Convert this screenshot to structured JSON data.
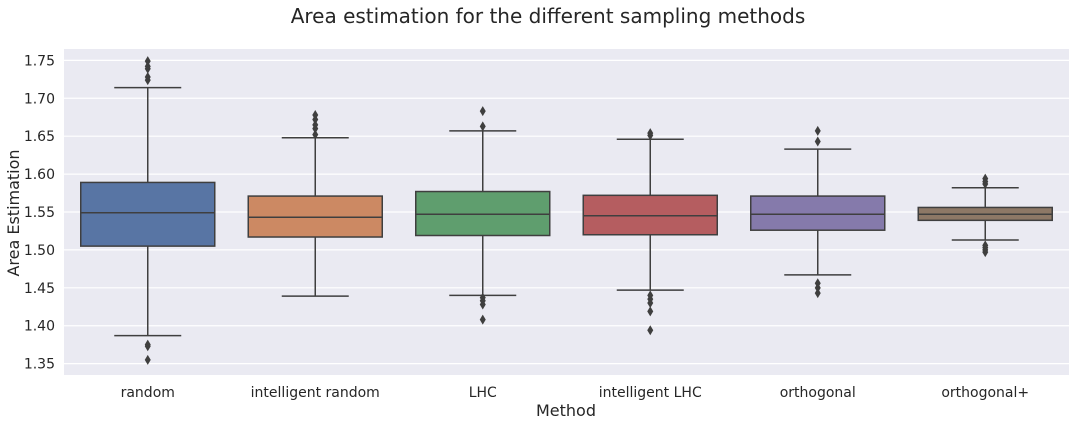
{
  "chart_data": {
    "type": "box",
    "title": "Area estimation for the different sampling methods",
    "xlabel": "Method",
    "ylabel": "Area Estimation",
    "ylim": [
      1.335,
      1.765
    ],
    "yticks": [
      1.35,
      1.4,
      1.45,
      1.5,
      1.55,
      1.6,
      1.65,
      1.7,
      1.75
    ],
    "ytick_labels": [
      "1.35",
      "1.40",
      "1.45",
      "1.50",
      "1.55",
      "1.60",
      "1.65",
      "1.70",
      "1.75"
    ],
    "grid": true,
    "background": "#eaeaf2",
    "categories": [
      "random",
      "intelligent random",
      "LHC",
      "intelligent LHC",
      "orthogonal",
      "orthogonal+"
    ],
    "colors": [
      "#5875a4",
      "#cc8963",
      "#5f9e6e",
      "#b55d60",
      "#857aab",
      "#8d7866"
    ],
    "boxes": [
      {
        "whisker_low": 1.387,
        "q1": 1.505,
        "median": 1.549,
        "q3": 1.589,
        "whisker_high": 1.714,
        "outliers": [
          1.355,
          1.373,
          1.375,
          1.724,
          1.728,
          1.739,
          1.742,
          1.749
        ]
      },
      {
        "whisker_low": 1.439,
        "q1": 1.517,
        "median": 1.543,
        "q3": 1.571,
        "whisker_high": 1.648,
        "outliers": [
          1.652,
          1.66,
          1.665,
          1.672,
          1.678
        ]
      },
      {
        "whisker_low": 1.44,
        "q1": 1.519,
        "median": 1.547,
        "q3": 1.577,
        "whisker_high": 1.657,
        "outliers": [
          1.408,
          1.428,
          1.433,
          1.437,
          1.663,
          1.683
        ]
      },
      {
        "whisker_low": 1.447,
        "q1": 1.52,
        "median": 1.545,
        "q3": 1.572,
        "whisker_high": 1.646,
        "outliers": [
          1.394,
          1.419,
          1.43,
          1.435,
          1.44,
          1.651,
          1.654
        ]
      },
      {
        "whisker_low": 1.467,
        "q1": 1.526,
        "median": 1.547,
        "q3": 1.571,
        "whisker_high": 1.633,
        "outliers": [
          1.443,
          1.45,
          1.456,
          1.643,
          1.657
        ]
      },
      {
        "whisker_low": 1.513,
        "q1": 1.539,
        "median": 1.547,
        "q3": 1.556,
        "whisker_high": 1.582,
        "outliers": [
          1.497,
          1.5,
          1.503,
          1.506,
          1.587,
          1.59,
          1.594
        ]
      }
    ]
  }
}
